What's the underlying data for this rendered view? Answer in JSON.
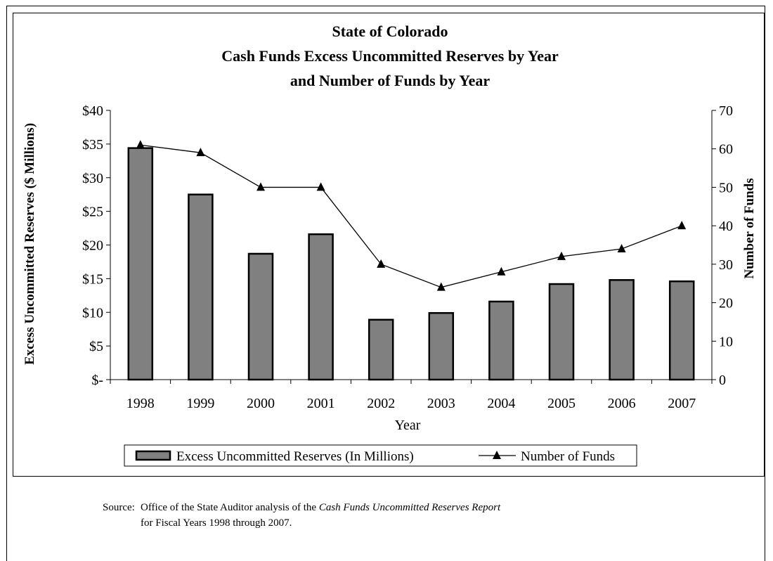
{
  "chart_data": {
    "type": "bar",
    "title_lines": [
      "State of Colorado",
      "Cash Funds Excess Uncommitted Reserves by Year",
      "and Number of Funds by Year"
    ],
    "xlabel": "Year",
    "ylabel_left": "Excess Uncommitted Reserves ($ Millions)",
    "ylabel_right": "Number of Funds",
    "categories": [
      "1998",
      "1999",
      "2000",
      "2001",
      "2002",
      "2003",
      "2004",
      "2005",
      "2006",
      "2007"
    ],
    "series": [
      {
        "name": "Excess Uncommitted Reserves (In Millions)",
        "type": "bar",
        "axis": "left",
        "color": "#808080",
        "values": [
          34.4,
          27.5,
          18.7,
          21.6,
          8.9,
          9.9,
          11.6,
          14.2,
          14.8,
          14.6
        ]
      },
      {
        "name": "Number of Funds",
        "type": "line",
        "axis": "right",
        "color": "#000000",
        "marker": "triangle",
        "values": [
          61,
          59,
          50,
          50,
          30,
          24,
          28,
          32,
          34,
          40
        ]
      }
    ],
    "ylim_left": [
      0,
      40
    ],
    "yticks_left": [
      {
        "value": 40,
        "label": "$40"
      },
      {
        "value": 35,
        "label": "$35"
      },
      {
        "value": 30,
        "label": "$30"
      },
      {
        "value": 25,
        "label": "$25"
      },
      {
        "value": 20,
        "label": "$20"
      },
      {
        "value": 15,
        "label": "$15"
      },
      {
        "value": 10,
        "label": "$10"
      },
      {
        "value": 5,
        "label": "$5"
      },
      {
        "value": 0,
        "label": "$-"
      }
    ],
    "ylim_right": [
      0,
      70
    ],
    "yticks_right": [
      0,
      10,
      20,
      30,
      40,
      50,
      60,
      70
    ],
    "grid": false,
    "legend_position": "bottom"
  },
  "source": {
    "label": "Source:",
    "text_before": "Office of the State Auditor analysis of the ",
    "text_italic": "Cash Funds Uncommitted Reserves Report",
    "line2": "for Fiscal Years 1998 through 2007."
  }
}
